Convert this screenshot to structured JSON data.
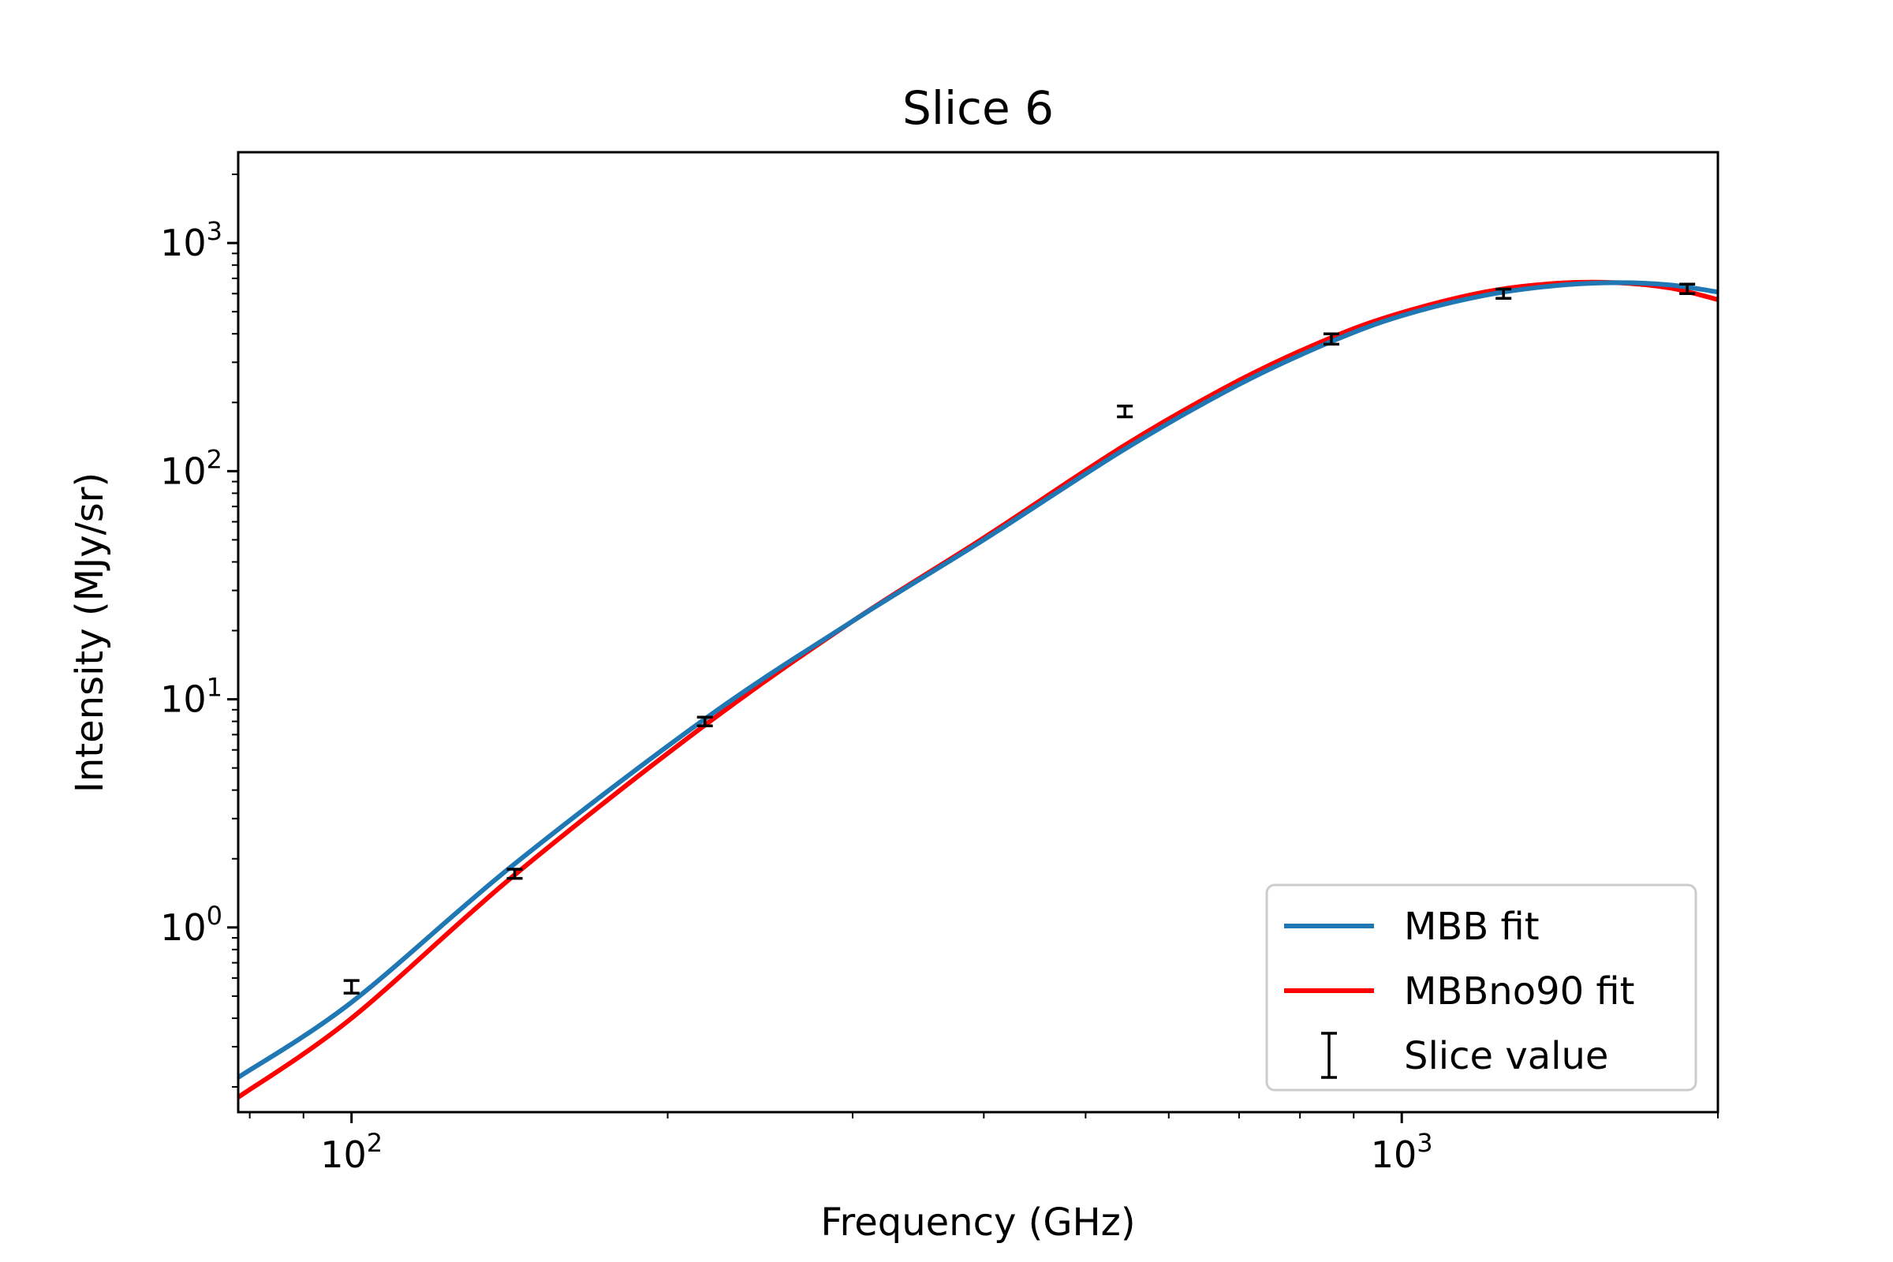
{
  "chart_data": {
    "type": "line",
    "title": "Slice 6",
    "xlabel": "Frequency (GHz)",
    "ylabel": "Intensity (MJy/sr)",
    "xscale": "log",
    "yscale": "log",
    "xlim": [
      78,
      2000
    ],
    "ylim": [
      0.155,
      2500
    ],
    "x_ticks": [
      {
        "value": 100,
        "base": "10",
        "exp": "2"
      },
      {
        "value": 1000,
        "base": "10",
        "exp": "3"
      }
    ],
    "y_ticks": [
      {
        "value": 1,
        "base": "10",
        "exp": "0"
      },
      {
        "value": 10,
        "base": "10",
        "exp": "1"
      },
      {
        "value": 100,
        "base": "10",
        "exp": "2"
      },
      {
        "value": 1000,
        "base": "10",
        "exp": "3"
      }
    ],
    "grid": false,
    "legend": "bottom-right",
    "series": [
      {
        "name": "MBB fit",
        "color": "#1f77b4",
        "x": [
          78,
          100,
          143,
          217,
          300,
          400,
          545,
          700,
          857,
          1000,
          1200,
          1400,
          1600,
          1800,
          2000
        ],
        "y": [
          0.22,
          0.47,
          1.9,
          8.2,
          22,
          50,
          125,
          240,
          370,
          480,
          590,
          650,
          670,
          655,
          610
        ]
      },
      {
        "name": "MBBno90 fit",
        "color": "#ff0000",
        "x": [
          78,
          100,
          143,
          217,
          300,
          400,
          545,
          700,
          857,
          1000,
          1200,
          1400,
          1600,
          1800,
          2000
        ],
        "y": [
          0.18,
          0.4,
          1.7,
          7.7,
          22,
          51,
          130,
          250,
          385,
          495,
          610,
          665,
          670,
          635,
          565
        ]
      }
    ],
    "points": {
      "name": "Slice value",
      "color": "#000000",
      "x": [
        100,
        143,
        217,
        545,
        857,
        1250,
        1870
      ],
      "y": [
        0.55,
        1.72,
        8.0,
        183,
        380,
        600,
        630
      ],
      "yerr": [
        0.035,
        0.08,
        0.35,
        10,
        20,
        28,
        30
      ]
    }
  }
}
